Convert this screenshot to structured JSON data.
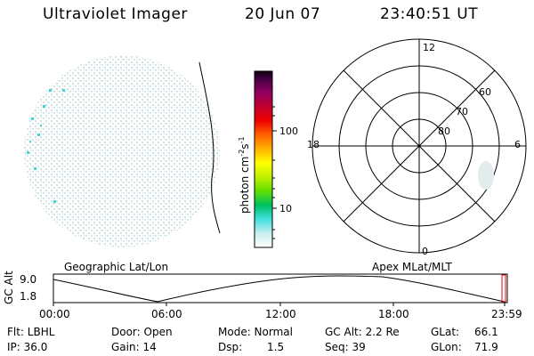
{
  "header": {
    "instrument": "Ultraviolet Imager",
    "date": "20 Jun 07",
    "time": "23:40:51 UT"
  },
  "colorbar": {
    "unit_main": "photon cm",
    "unit_exp1": "-2",
    "unit_s": "s",
    "unit_exp2": "-1",
    "ticks": [
      "100",
      "10"
    ]
  },
  "polar": {
    "labels": {
      "top": "12",
      "bottom": "0",
      "left": "18",
      "right": "6"
    },
    "rings": [
      "60",
      "70",
      "80"
    ]
  },
  "orbit": {
    "left_title": "Geographic Lat/Lon",
    "right_title": "Apex MLat/MLT",
    "ylabel": "GC Alt",
    "y_ticks": [
      "9.0",
      "1.8"
    ],
    "x_ticks": [
      "00:00",
      "06:00",
      "12:00",
      "18:00",
      "23:59"
    ]
  },
  "footer": {
    "flt": "Flt: LBHL",
    "ip": "IP: 36.0",
    "door": "Door: Open",
    "gain": "Gain: 14",
    "mode": "Mode: Normal",
    "dsp_label": "Dsp:",
    "dsp_value": "1.5",
    "gcalt": "GC Alt: 2.2 Re",
    "seq": "Seq: 39",
    "glat_label": "GLat:",
    "glat_value": "66.1",
    "glon_label": "GLon:",
    "glon_value": "71.9"
  }
}
